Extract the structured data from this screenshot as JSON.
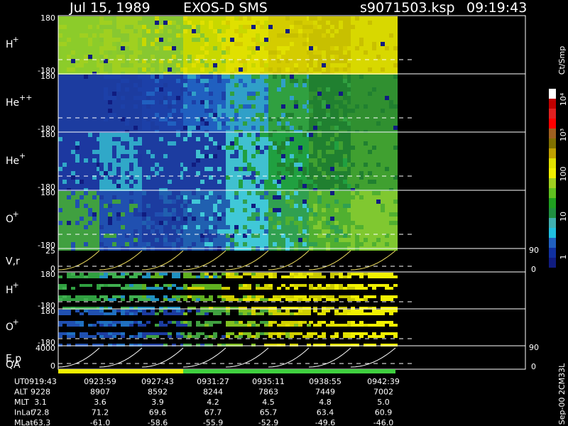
{
  "header": {
    "date": "Jul 15, 1989",
    "instrument": "EXOS-D SMS",
    "file": "s9071503.ksp",
    "time": "09:19:43"
  },
  "panels": [
    {
      "name": "H",
      "sup": "+",
      "top": "180",
      "bottom": "-180"
    },
    {
      "name": "He",
      "sup": "++",
      "top": "180",
      "bottom": "-180"
    },
    {
      "name": "He",
      "sup": "+",
      "top": "180",
      "bottom": "-180"
    },
    {
      "name": "O",
      "sup": "+",
      "top": "180",
      "bottom": "-180"
    },
    {
      "name": "V,r",
      "top": "25",
      "bottom": "0",
      "right_top": "90",
      "right_bottom": "0"
    },
    {
      "name": "H",
      "sup": "+",
      "top": "180",
      "bottom": "-180"
    },
    {
      "name": "O",
      "sup": "+",
      "top": "180",
      "bottom": "-180"
    },
    {
      "name": "E,p",
      "top": "4000",
      "bottom": "0",
      "right_top": "90",
      "right_bottom": "0"
    }
  ],
  "qa_label": "QA",
  "colorbar": {
    "unit": "Ct/Smp",
    "ticks": [
      "10⁴",
      "10³",
      "100",
      "10",
      "1"
    ]
  },
  "ephemeris": [
    {
      "name": "UT",
      "values": [
        "0919:43",
        "0923:59",
        "0927:43",
        "0931:27",
        "0935:11",
        "0938:55",
        "0942:39"
      ]
    },
    {
      "name": "ALT",
      "values": [
        "9228",
        "8907",
        "8592",
        "8244",
        "7863",
        "7449",
        "7002"
      ]
    },
    {
      "name": "MLT",
      "values": [
        "3.1",
        "3.6",
        "3.9",
        "4.2",
        "4.5",
        "4.8",
        "5.0"
      ]
    },
    {
      "name": "InLat",
      "values": [
        "72.8",
        "71.2",
        "69.6",
        "67.7",
        "65.7",
        "63.4",
        "60.9"
      ]
    },
    {
      "name": "MLat",
      "values": [
        "-63.3",
        "-61.0",
        "-58.6",
        "-55.9",
        "-52.9",
        "-49.6",
        "-46.0"
      ]
    }
  ],
  "footer": "Sep-00 2CM33L"
}
